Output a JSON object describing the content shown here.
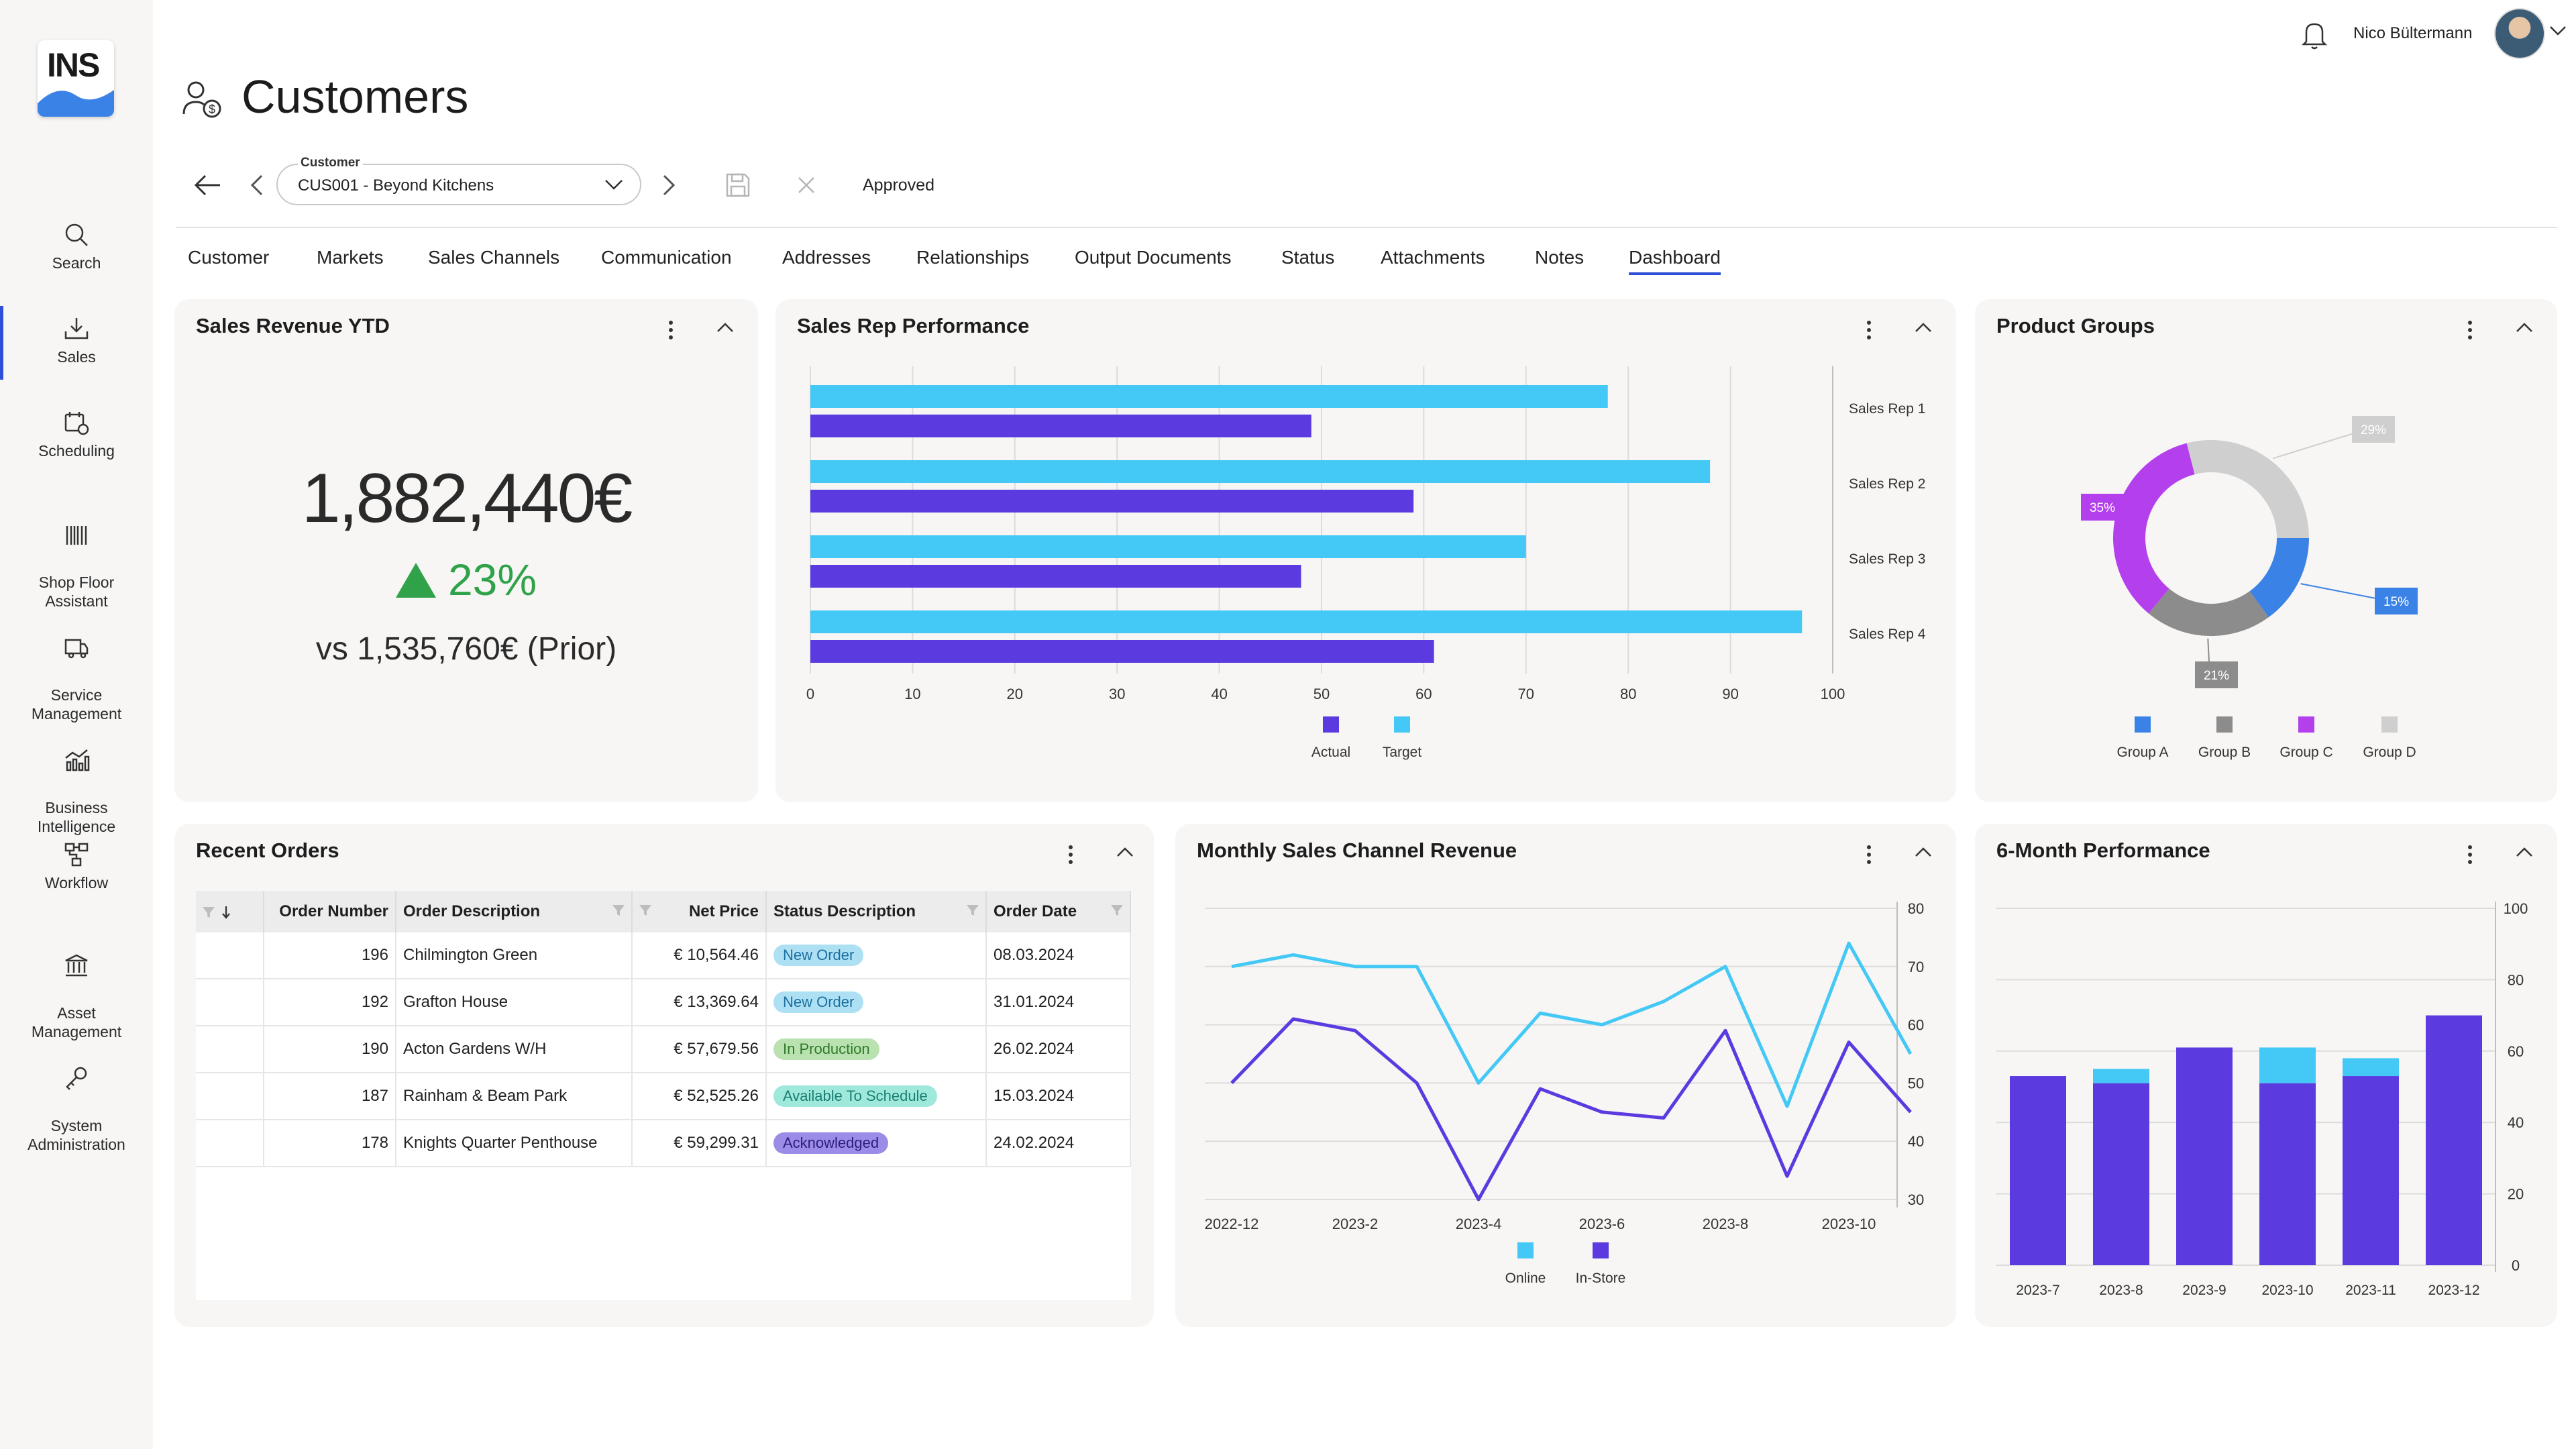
{
  "app": {
    "logo_text": "INS"
  },
  "sidebar": {
    "items": [
      {
        "label": "Search"
      },
      {
        "label": "Sales"
      },
      {
        "label": "Scheduling"
      },
      {
        "label": "Shop Floor\nAssistant"
      },
      {
        "label": "Service\nManagement"
      },
      {
        "label": "Business\nIntelligence"
      },
      {
        "label": "Workflow"
      },
      {
        "label": "Asset\nManagement"
      },
      {
        "label": "System\nAdministration"
      }
    ]
  },
  "header": {
    "title": "Customers",
    "user_name": "Nico Bültermann"
  },
  "toolbar": {
    "customer_label": "Customer",
    "customer_value": "CUS001 - Beyond Kitchens",
    "status": "Approved"
  },
  "tabs": [
    {
      "label": "Customer"
    },
    {
      "label": "Markets"
    },
    {
      "label": "Sales Channels"
    },
    {
      "label": "Communication"
    },
    {
      "label": "Addresses"
    },
    {
      "label": "Relationships"
    },
    {
      "label": "Output Documents"
    },
    {
      "label": "Status"
    },
    {
      "label": "Attachments"
    },
    {
      "label": "Notes"
    },
    {
      "label": "Dashboard",
      "active": true
    }
  ],
  "cards": {
    "revenue": {
      "title": "Sales Revenue YTD",
      "amount": "1,882,440€",
      "growth": "23%",
      "prior": "vs 1,535,760€ (Prior)"
    },
    "sales_rep": {
      "title": "Sales Rep Performance"
    },
    "product_groups": {
      "title": "Product Groups"
    },
    "recent_orders": {
      "title": "Recent Orders"
    },
    "monthly_channel": {
      "title": "Monthly Sales Channel Revenue"
    },
    "six_month": {
      "title": "6-Month Performance"
    }
  },
  "orders": {
    "columns": [
      "Order Number",
      "Order Description",
      "Net Price",
      "Status Description",
      "Order Date"
    ],
    "rows": [
      {
        "number": "196",
        "description": "Chilmington Green",
        "price": "€ 10,564.46",
        "status": "New Order",
        "date": "08.03.2024"
      },
      {
        "number": "192",
        "description": "Grafton House",
        "price": "€ 13,369.64",
        "status": "New Order",
        "date": "31.01.2024"
      },
      {
        "number": "190",
        "description": "Acton Gardens W/H",
        "price": "€ 57,679.56",
        "status": "In Production",
        "date": "26.02.2024"
      },
      {
        "number": "187",
        "description": "Rainham & Beam Park",
        "price": "€ 52,525.26",
        "status": "Available To Schedule",
        "date": "15.03.2024"
      },
      {
        "number": "178",
        "description": "Knights Quarter Penthouse",
        "price": "€ 59,299.31",
        "status": "Acknowledged",
        "date": "24.02.2024"
      }
    ],
    "status_colors": {
      "New Order": {
        "bg": "#aee0f4",
        "fg": "#1a6fa0"
      },
      "In Production": {
        "bg": "#b9e2b0",
        "fg": "#2f7a2a"
      },
      "Available To Schedule": {
        "bg": "#9fe8dc",
        "fg": "#1c7f73"
      },
      "Acknowledged": {
        "bg": "#9c8ce8",
        "fg": "#2c1e7c"
      }
    }
  },
  "colors": {
    "accent": "#2e4fd8",
    "actual": "#5b3be0",
    "target": "#44c8f5",
    "growth": "#2fa24a"
  },
  "chart_data": [
    {
      "id": "sales_rep",
      "type": "bar",
      "orientation": "horizontal",
      "categories": [
        "Sales Rep 1",
        "Sales Rep 2",
        "Sales Rep 3",
        "Sales Rep 4"
      ],
      "series": [
        {
          "name": "Target",
          "values": [
            78,
            88,
            70,
            97
          ],
          "color": "#44c8f5"
        },
        {
          "name": "Actual",
          "values": [
            49,
            59,
            48,
            61
          ],
          "color": "#5b3be0"
        }
      ],
      "xlim": [
        0,
        100
      ],
      "xticks": [
        0,
        10,
        20,
        30,
        40,
        50,
        60,
        70,
        80,
        90,
        100
      ],
      "legend": [
        "Actual",
        "Target"
      ],
      "grid": true
    },
    {
      "id": "product_groups",
      "type": "pie",
      "donut": true,
      "labels": [
        "Group A",
        "Group B",
        "Group C",
        "Group D"
      ],
      "values": [
        15,
        21,
        35,
        29
      ],
      "value_labels": [
        "15%",
        "21%",
        "35%",
        "29%"
      ],
      "colors": [
        "#3b82e6",
        "#8c8c8c",
        "#b43fec",
        "#cfcfcf"
      ]
    },
    {
      "id": "monthly_channel",
      "type": "line",
      "x": [
        "2022-12",
        "2023-1",
        "2023-2",
        "2023-3",
        "2023-4",
        "2023-5",
        "2023-6",
        "2023-7",
        "2023-8",
        "2023-9",
        "2023-10",
        "2023-11"
      ],
      "xticks": [
        "2022-12",
        "2023-2",
        "2023-4",
        "2023-6",
        "2023-8",
        "2023-10"
      ],
      "series": [
        {
          "name": "Online",
          "values": [
            70,
            72,
            70,
            70,
            50,
            62,
            60,
            64,
            70,
            46,
            74,
            55
          ],
          "color": "#44c8f5"
        },
        {
          "name": "In-Store",
          "values": [
            50,
            61,
            59,
            50,
            30,
            49,
            45,
            44,
            59,
            34,
            57,
            45
          ],
          "color": "#5b3be0"
        }
      ],
      "ylim": [
        30,
        80
      ],
      "yticks": [
        30,
        40,
        50,
        60,
        70,
        80
      ],
      "grid": true
    },
    {
      "id": "six_month",
      "type": "bar",
      "stacked": true,
      "categories": [
        "2023-7",
        "2023-8",
        "2023-9",
        "2023-10",
        "2023-11",
        "2023-12"
      ],
      "series": [
        {
          "name": "Actual",
          "values": [
            53,
            51,
            61,
            51,
            53,
            70
          ],
          "color": "#5b3be0"
        },
        {
          "name": "Target",
          "values": [
            0,
            4,
            0,
            10,
            5,
            0
          ],
          "color": "#44c8f5"
        }
      ],
      "ylim": [
        0,
        100
      ],
      "yticks": [
        0,
        20,
        40,
        60,
        80,
        100
      ],
      "grid": true
    }
  ]
}
